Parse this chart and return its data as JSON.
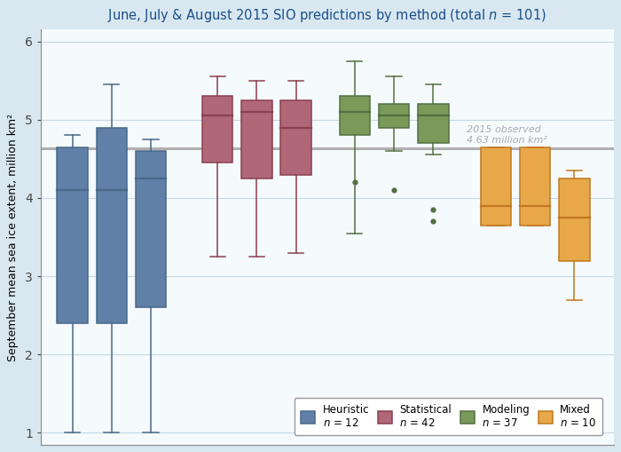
{
  "ylabel": "September mean sea ice extent, million km²",
  "observed_line": 4.63,
  "observed_label": "2015 observed\n4.63 million km²",
  "background_color": "#d9e8f0",
  "plot_background": "#f5fafd",
  "grid_color": "#c5d8e5",
  "ylim": [
    0.85,
    6.15
  ],
  "yticks": [
    1,
    2,
    3,
    4,
    5,
    6
  ],
  "xlim": [
    0.2,
    14.8
  ],
  "groups": [
    {
      "name": "Heuristic",
      "n": 12,
      "color": "#6080a8",
      "edge_color": "#4a6888",
      "positions": [
        1.0,
        2.0,
        3.0
      ],
      "boxes": [
        {
          "q1": 2.4,
          "median": 4.1,
          "q3": 4.65,
          "whislo": 1.0,
          "whishi": 4.8,
          "fliers": []
        },
        {
          "q1": 2.4,
          "median": 4.1,
          "q3": 4.9,
          "whislo": 1.0,
          "whishi": 5.45,
          "fliers": []
        },
        {
          "q1": 2.6,
          "median": 4.25,
          "q3": 4.6,
          "whislo": 1.0,
          "whishi": 4.75,
          "fliers": []
        }
      ]
    },
    {
      "name": "Statistical",
      "n": 42,
      "color": "#b06878",
      "edge_color": "#8a4050",
      "positions": [
        4.7,
        5.7,
        6.7
      ],
      "boxes": [
        {
          "q1": 4.45,
          "median": 5.05,
          "q3": 5.3,
          "whislo": 3.25,
          "whishi": 5.55,
          "fliers": []
        },
        {
          "q1": 4.25,
          "median": 5.1,
          "q3": 5.25,
          "whislo": 3.25,
          "whishi": 5.5,
          "fliers": []
        },
        {
          "q1": 4.3,
          "median": 4.9,
          "q3": 5.25,
          "whislo": 3.3,
          "whishi": 5.5,
          "fliers": []
        }
      ]
    },
    {
      "name": "Modeling",
      "n": 37,
      "color": "#7a9a5a",
      "edge_color": "#527040",
      "positions": [
        8.2,
        9.2,
        10.2
      ],
      "boxes": [
        {
          "q1": 4.8,
          "median": 5.1,
          "q3": 5.3,
          "whislo": 3.55,
          "whishi": 5.75,
          "fliers": [
            4.2
          ]
        },
        {
          "q1": 4.9,
          "median": 5.05,
          "q3": 5.2,
          "whislo": 4.6,
          "whishi": 5.55,
          "fliers": [
            4.1
          ]
        },
        {
          "q1": 4.7,
          "median": 5.05,
          "q3": 5.2,
          "whislo": 4.55,
          "whishi": 5.45,
          "fliers": [
            3.7,
            3.85
          ]
        }
      ]
    },
    {
      "name": "Mixed",
      "n": 10,
      "color": "#e8a84a",
      "edge_color": "#c07820",
      "positions": [
        11.8,
        12.8,
        13.8
      ],
      "boxes": [
        {
          "q1": 3.65,
          "median": 3.9,
          "q3": 4.65,
          "whislo": 3.65,
          "whishi": 4.65,
          "fliers": []
        },
        {
          "q1": 3.65,
          "median": 3.9,
          "q3": 4.65,
          "whislo": 3.65,
          "whishi": 4.65,
          "fliers": []
        },
        {
          "q1": 3.2,
          "median": 3.75,
          "q3": 4.25,
          "whislo": 2.7,
          "whishi": 4.35,
          "fliers": []
        }
      ]
    }
  ],
  "legend_entries": [
    {
      "name": "Heuristic",
      "n": 12,
      "color": "#6080a8",
      "edge_color": "#4a6888"
    },
    {
      "name": "Statistical",
      "n": 42,
      "color": "#b06878",
      "edge_color": "#8a4050"
    },
    {
      "name": "Modeling",
      "n": 37,
      "color": "#7a9a5a",
      "edge_color": "#527040"
    },
    {
      "name": "Mixed",
      "n": 10,
      "color": "#e8a84a",
      "edge_color": "#c07820"
    }
  ]
}
